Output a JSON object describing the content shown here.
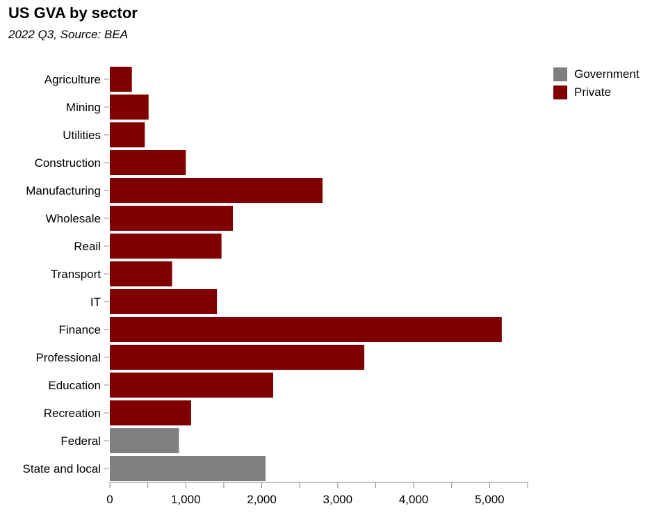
{
  "chart_data": {
    "type": "bar",
    "orientation": "horizontal",
    "title": "US GVA by sector",
    "subtitle": "2022 Q3, Source: BEA",
    "categories": [
      "Agriculture",
      "Mining",
      "Utilities",
      "Construction",
      "Manufacturing",
      "Wholesale",
      "Reail",
      "Transport",
      "IT",
      "Finance",
      "Professional",
      "Education",
      "Recreation",
      "Federal",
      "State and local"
    ],
    "groups": [
      "Private",
      "Private",
      "Private",
      "Private",
      "Private",
      "Private",
      "Private",
      "Private",
      "Private",
      "Private",
      "Private",
      "Private",
      "Private",
      "Government",
      "Government"
    ],
    "values": [
      290,
      510,
      460,
      1000,
      2800,
      1620,
      1470,
      820,
      1410,
      5160,
      3350,
      2150,
      1070,
      910,
      2050
    ],
    "xlim": [
      0,
      5500
    ],
    "xticks": [
      0,
      1000,
      2000,
      3000,
      4000,
      5000
    ],
    "xtick_labels": [
      "0",
      "1,000",
      "2,000",
      "3,000",
      "4,000",
      "5,000"
    ],
    "legend": {
      "placement": "top-right",
      "items": [
        {
          "name": "Government",
          "color": "#7f7f7f"
        },
        {
          "name": "Private",
          "color": "#800000"
        }
      ]
    },
    "colors": {
      "Government": "#7f7f7f",
      "Private": "#800000"
    },
    "grid": false
  }
}
